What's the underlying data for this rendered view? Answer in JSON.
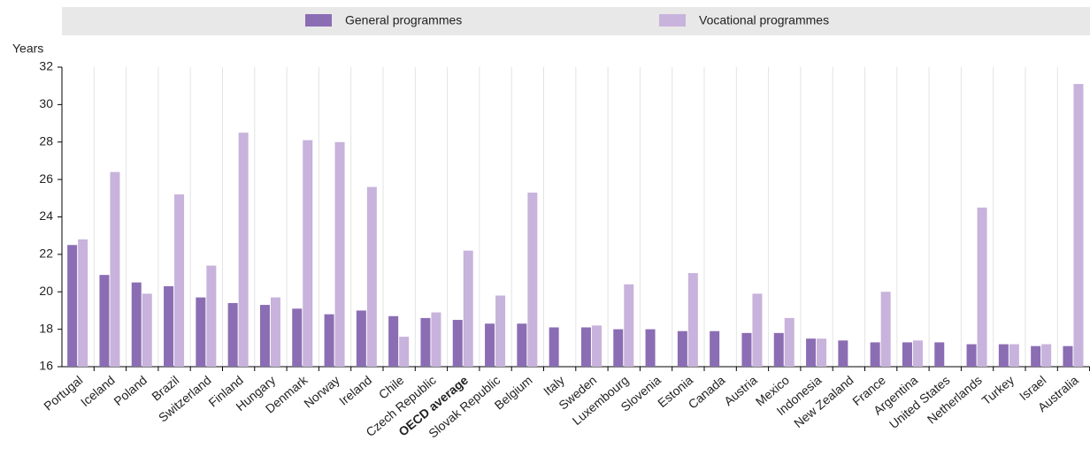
{
  "chart_data": {
    "type": "bar",
    "y_axis_label": "Years",
    "categories": [
      "Portugal",
      "Iceland",
      "Poland",
      "Brazil",
      "Switzerland",
      "Finland",
      "Hungary",
      "Denmark",
      "Norway",
      "Ireland",
      "Chile",
      "Czech Republic",
      "OECD average",
      "Slovak Republic",
      "Belgium",
      "Italy",
      "Sweden",
      "Luxembourg",
      "Slovenia",
      "Estonia",
      "Canada",
      "Austria",
      "Mexico",
      "Indonesia",
      "New Zealand",
      "France",
      "Argentina",
      "United States",
      "Netherlands",
      "Turkey",
      "Israel",
      "Australia"
    ],
    "highlight": "OECD average",
    "series": [
      {
        "name": "General programmes",
        "color": "#8b6db4",
        "values": [
          22.5,
          20.9,
          20.5,
          20.3,
          19.7,
          19.4,
          19.3,
          19.1,
          18.8,
          19.0,
          18.7,
          18.6,
          18.5,
          18.3,
          18.3,
          18.1,
          18.1,
          18.0,
          18.0,
          17.9,
          17.9,
          17.8,
          17.8,
          17.5,
          17.4,
          17.3,
          17.3,
          17.3,
          17.2,
          17.2,
          17.1,
          17.1
        ]
      },
      {
        "name": "Vocational programmes",
        "color": "#c8b3dc",
        "values": [
          22.8,
          26.4,
          19.9,
          25.2,
          21.4,
          28.5,
          19.7,
          28.1,
          28.0,
          25.6,
          17.6,
          18.9,
          22.2,
          19.8,
          25.3,
          null,
          18.2,
          20.4,
          null,
          21.0,
          null,
          19.9,
          18.6,
          17.5,
          null,
          20.0,
          17.4,
          null,
          24.5,
          17.2,
          17.2,
          31.1
        ]
      }
    ],
    "ylim": [
      16,
      32
    ],
    "yticks": [
      16,
      18,
      20,
      22,
      24,
      26,
      28,
      30,
      32
    ],
    "grid": false,
    "legend": "top"
  }
}
